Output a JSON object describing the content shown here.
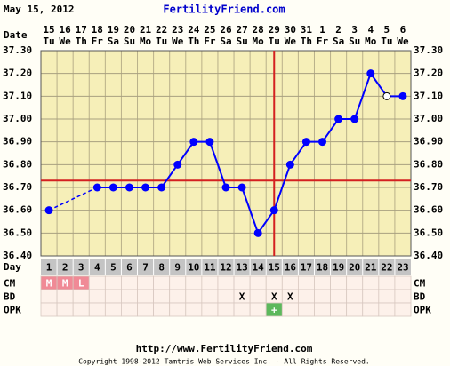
{
  "chart_data": {
    "type": "line",
    "date": "May 15, 2012",
    "title": "FertilityFriend.com",
    "date_row_label": "Date",
    "categories": [
      "15",
      "16",
      "17",
      "18",
      "19",
      "20",
      "21",
      "22",
      "23",
      "24",
      "25",
      "26",
      "27",
      "28",
      "29",
      "30",
      "31",
      "1",
      "2",
      "3",
      "4",
      "5",
      "6"
    ],
    "weekdays": [
      "Tu",
      "We",
      "Th",
      "Fr",
      "Sa",
      "Su",
      "Mo",
      "Tu",
      "We",
      "Th",
      "Fr",
      "Sa",
      "Su",
      "Mo",
      "Tu",
      "We",
      "Th",
      "Fr",
      "Sa",
      "Su",
      "Mo",
      "Tu",
      "We"
    ],
    "series": [
      {
        "color": "#0000ff",
        "values": [
          36.6,
          null,
          null,
          36.7,
          36.7,
          36.7,
          36.7,
          36.7,
          36.8,
          36.9,
          36.9,
          36.7,
          36.7,
          36.5,
          36.6,
          36.8,
          36.9,
          36.9,
          37.0,
          37.0,
          37.2,
          37.1,
          37.1
        ],
        "open_points": [
          21
        ]
      }
    ],
    "ylim": [
      36.4,
      37.3
    ],
    "yticks": [
      {
        "value": 36.4,
        "label": "36.40"
      },
      {
        "value": 36.5,
        "label": "36.50"
      },
      {
        "value": 36.6,
        "label": "36.60"
      },
      {
        "value": 36.7,
        "label": "36.70"
      },
      {
        "value": 36.8,
        "label": "36.80"
      },
      {
        "value": 36.9,
        "label": "36.90"
      },
      {
        "value": 37.0,
        "label": "37.00"
      },
      {
        "value": 37.1,
        "label": "37.10"
      },
      {
        "value": 37.2,
        "label": "37.20"
      },
      {
        "value": 37.3,
        "label": "37.30"
      }
    ],
    "grid": true,
    "coverline": 36.73,
    "ovulation_day": 15,
    "marker_color": "#d42020",
    "day_row_label": "Day",
    "days": [
      1,
      2,
      3,
      4,
      5,
      6,
      7,
      8,
      9,
      10,
      11,
      12,
      13,
      14,
      15,
      16,
      17,
      18,
      19,
      20,
      21,
      22,
      23
    ],
    "rows": [
      {
        "label": "CM",
        "color": "#f08a96",
        "cells": [
          "M",
          "M",
          "L",
          null,
          null,
          null,
          null,
          null,
          null,
          null,
          null,
          null,
          null,
          null,
          null,
          null,
          null,
          null,
          null,
          null,
          null,
          null,
          null
        ]
      },
      {
        "label": "BD",
        "cells": [
          null,
          null,
          null,
          null,
          null,
          null,
          null,
          null,
          null,
          null,
          null,
          null,
          "X",
          null,
          "X",
          "X",
          null,
          null,
          null,
          null,
          null,
          null,
          null
        ]
      },
      {
        "label": "OPK",
        "color": "#5cb85c",
        "cells": [
          null,
          null,
          null,
          null,
          null,
          null,
          null,
          null,
          null,
          null,
          null,
          null,
          null,
          null,
          "+",
          null,
          null,
          null,
          null,
          null,
          null,
          null,
          null
        ]
      }
    ],
    "url": "http://www.FertilityFriend.com",
    "copyright": "Copyright 1998-2012 Tamtris Web Services Inc. - All Rights Reserved."
  }
}
